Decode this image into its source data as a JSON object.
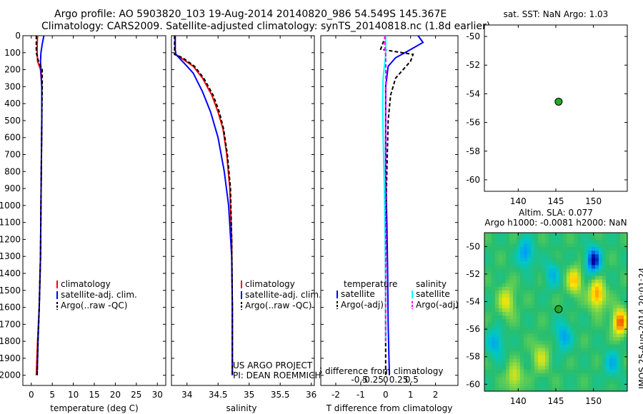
{
  "header": {
    "line1": "Argo profile: AO 5903820_103 19-Aug-2014 20140820_986 54.549S 145.367E",
    "line2": "Climatology: CARS2009. Satellite-adjusted climatology: synTS_20140818.nc (1.8d earlier)"
  },
  "side_text": "IMOS 25-Aug-2014 20:01:24",
  "colors": {
    "climatology": "#ff0000",
    "satellite": "#0000ff",
    "argo": "#000000",
    "cyan": "#00ffff",
    "magenta": "#ff00ff",
    "point": "#22aa22"
  },
  "chart_data": [
    {
      "type": "line",
      "id": "temperature",
      "xlabel": "temperature (deg C)",
      "ylabel": "",
      "xlim": [
        -2,
        32
      ],
      "ylim": [
        2060,
        0
      ],
      "xticks": [
        0,
        5,
        10,
        15,
        20,
        25,
        30
      ],
      "yticks": [
        0,
        100,
        200,
        300,
        400,
        500,
        600,
        700,
        800,
        900,
        1000,
        1100,
        1200,
        1300,
        1400,
        1500,
        1600,
        1700,
        1800,
        1900,
        2000
      ],
      "legend": [
        "climatology",
        "satellite-adj. clim.",
        "Argo(..raw -QC)"
      ],
      "series": [
        {
          "name": "climatology",
          "color": "#ff0000",
          "dashed": false,
          "points": [
            [
              1.5,
              0
            ],
            [
              1.4,
              50
            ],
            [
              1.4,
              100
            ],
            [
              1.5,
              150
            ],
            [
              2.2,
              200
            ],
            [
              2.5,
              300
            ],
            [
              2.5,
              500
            ],
            [
              2.4,
              750
            ],
            [
              2.3,
              1000
            ],
            [
              2.2,
              1300
            ],
            [
              1.9,
              1600
            ],
            [
              1.5,
              1800
            ],
            [
              1.2,
              2000
            ]
          ]
        },
        {
          "name": "satellite-adj. clim.",
          "color": "#0000ff",
          "dashed": false,
          "points": [
            [
              3.0,
              0
            ],
            [
              2.6,
              50
            ],
            [
              2.3,
              100
            ],
            [
              2.2,
              150
            ],
            [
              2.3,
              200
            ],
            [
              2.5,
              300
            ],
            [
              2.5,
              500
            ],
            [
              2.4,
              750
            ],
            [
              2.3,
              1000
            ],
            [
              2.2,
              1300
            ],
            [
              1.9,
              1600
            ],
            [
              1.6,
              1800
            ],
            [
              1.4,
              2000
            ]
          ]
        },
        {
          "name": "Argo(..raw -QC)",
          "color": "#000000",
          "dashed": true,
          "points": [
            [
              1.2,
              0
            ],
            [
              1.2,
              50
            ],
            [
              1.2,
              100
            ],
            [
              1.7,
              150
            ],
            [
              2.6,
              200
            ],
            [
              2.6,
              300
            ],
            [
              2.5,
              500
            ],
            [
              2.4,
              750
            ],
            [
              2.3,
              1000
            ],
            [
              2.2,
              1300
            ],
            [
              1.9,
              1600
            ],
            [
              1.6,
              1800
            ],
            [
              1.4,
              2000
            ]
          ]
        }
      ]
    },
    {
      "type": "line",
      "id": "salinity",
      "xlabel": "salinity",
      "xlim": [
        33.75,
        36.05
      ],
      "ylim": [
        2060,
        0
      ],
      "xticks": [
        34,
        34.5,
        35,
        35.5,
        36
      ],
      "xticklabels": [
        "34",
        "34.5",
        "35",
        "35.5",
        "36"
      ],
      "legend": [
        "climatology",
        "satellite-adj. clim.",
        "Argo(..raw -QC)"
      ],
      "annotation": [
        "US ARGO PROJECT",
        "PI: DEAN ROEMMICH"
      ],
      "series": [
        {
          "name": "climatology",
          "color": "#ff0000",
          "dashed": false,
          "points": [
            [
              33.81,
              0
            ],
            [
              33.81,
              80
            ],
            [
              33.82,
              110
            ],
            [
              33.9,
              130
            ],
            [
              34.1,
              180
            ],
            [
              34.25,
              250
            ],
            [
              34.4,
              350
            ],
            [
              34.5,
              450
            ],
            [
              34.58,
              550
            ],
            [
              34.64,
              700
            ],
            [
              34.69,
              900
            ],
            [
              34.72,
              1200
            ],
            [
              34.73,
              1600
            ],
            [
              34.73,
              2000
            ]
          ]
        },
        {
          "name": "satellite-adj. clim.",
          "color": "#0000ff",
          "dashed": false,
          "points": [
            [
              33.81,
              0
            ],
            [
              33.81,
              80
            ],
            [
              33.82,
              110
            ],
            [
              33.95,
              160
            ],
            [
              34.1,
              220
            ],
            [
              34.25,
              330
            ],
            [
              34.38,
              450
            ],
            [
              34.5,
              600
            ],
            [
              34.6,
              800
            ],
            [
              34.67,
              1000
            ],
            [
              34.72,
              1300
            ],
            [
              34.73,
              1600
            ],
            [
              34.73,
              2000
            ]
          ]
        },
        {
          "name": "Argo(..raw -QC)",
          "color": "#000000",
          "dashed": true,
          "points": [
            [
              33.8,
              0
            ],
            [
              33.8,
              80
            ],
            [
              33.8,
              110
            ],
            [
              33.93,
              130
            ],
            [
              34.12,
              180
            ],
            [
              34.27,
              250
            ],
            [
              34.42,
              350
            ],
            [
              34.52,
              450
            ],
            [
              34.59,
              550
            ],
            [
              34.65,
              700
            ],
            [
              34.7,
              900
            ],
            [
              34.72,
              1200
            ],
            [
              34.73,
              1600
            ],
            [
              34.73,
              2000
            ]
          ]
        }
      ]
    },
    {
      "type": "line",
      "id": "differences",
      "xlabel": "T difference from climatology",
      "xlabel_top": "S difference from climatology",
      "xlim": [
        -2.6,
        2.9
      ],
      "ylim": [
        2060,
        0
      ],
      "xticks": [
        -2,
        -1,
        0,
        1,
        2
      ],
      "sticks": [
        "-0.5",
        "-0.25",
        "0",
        "0.25",
        "0.5"
      ],
      "legend": {
        "temperature": [
          "satellite",
          "Argo(-adj)"
        ],
        "salinity": [
          "satellite",
          "Argo(-adj)"
        ]
      },
      "series": [
        {
          "name": "T satellite",
          "color": "#0000ff",
          "dashed": false,
          "points": [
            [
              1.3,
              0
            ],
            [
              1.5,
              40
            ],
            [
              0.9,
              90
            ],
            [
              0.4,
              130
            ],
            [
              0.1,
              180
            ],
            [
              0.0,
              300
            ],
            [
              0.0,
              500
            ],
            [
              0.0,
              800
            ],
            [
              0.05,
              1100
            ],
            [
              0.08,
              1400
            ],
            [
              0.1,
              1700
            ],
            [
              0.15,
              2000
            ]
          ]
        },
        {
          "name": "T Argo(-adj)",
          "color": "#000000",
          "dashed": true,
          "points": [
            [
              0.0,
              0
            ],
            [
              -0.2,
              80
            ],
            [
              1.1,
              110
            ],
            [
              1.0,
              150
            ],
            [
              0.4,
              250
            ],
            [
              0.2,
              350
            ],
            [
              0.1,
              500
            ],
            [
              0.05,
              800
            ],
            [
              0.0,
              1100
            ],
            [
              0.0,
              1500
            ],
            [
              0.0,
              2000
            ]
          ]
        },
        {
          "name": "S satellite",
          "color": "#00ffff",
          "dashed": false,
          "points": [
            [
              0.0,
              0
            ],
            [
              0.0,
              120
            ],
            [
              -0.05,
              180
            ],
            [
              -0.1,
              250
            ],
            [
              -0.12,
              400
            ],
            [
              -0.1,
              600
            ],
            [
              -0.05,
              900
            ],
            [
              -0.02,
              1200
            ],
            [
              0.0,
              1500
            ],
            [
              0.0,
              1800
            ]
          ]
        },
        {
          "name": "S Argo(-adj)",
          "color": "#ff00ff",
          "dashed": true,
          "points": [
            [
              -0.03,
              0
            ],
            [
              -0.03,
              80
            ],
            [
              0.0,
              110
            ],
            [
              0.01,
              200
            ],
            [
              0.01,
              300
            ],
            [
              0.0,
              600
            ],
            [
              0.0,
              1000
            ],
            [
              0.0,
              1500
            ],
            [
              0.0,
              1800
            ]
          ]
        }
      ]
    },
    {
      "type": "scatter",
      "id": "sst-map",
      "title": "sat. SST: NaN Argo: 1.03",
      "xlim": [
        135.5,
        154.5
      ],
      "ylim": [
        -60.8,
        -49.2
      ],
      "xticks": [
        140,
        145,
        150
      ],
      "yticks": [
        -50,
        -52,
        -54,
        -56,
        -58,
        -60
      ],
      "points": [
        [
          145.367,
          -54.549
        ]
      ]
    },
    {
      "type": "heatmap",
      "id": "sla-map",
      "title": [
        "Altim. SLA: 0.077",
        "Argo h1000: -0.0081 h2000: NaN"
      ],
      "xlim": [
        135.5,
        154.5
      ],
      "ylim": [
        -60.5,
        -49.0
      ],
      "xticks": [
        140,
        145,
        150
      ],
      "yticks": [
        -50,
        -52,
        -54,
        -56,
        -58,
        -60
      ],
      "points": [
        [
          145.367,
          -54.549
        ]
      ]
    }
  ]
}
